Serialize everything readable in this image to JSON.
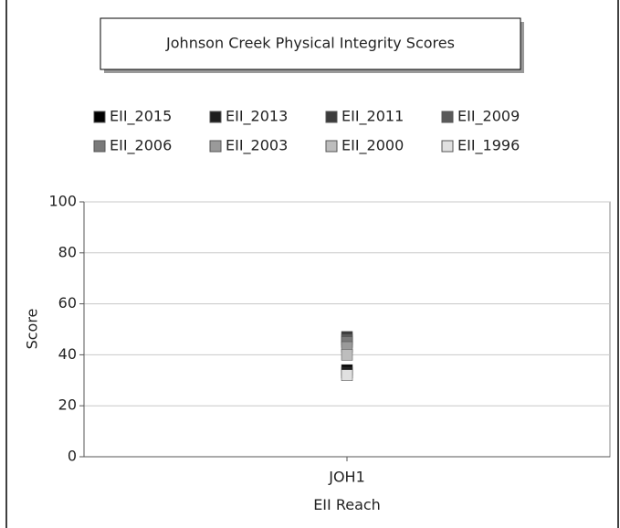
{
  "chart_data": {
    "type": "scatter",
    "title": "Johnson Creek Physical Integrity Scores",
    "xlabel": "EII Reach",
    "ylabel": "Score",
    "categories": [
      "JOH1"
    ],
    "series": [
      {
        "name": "EII_2015",
        "color": "#000000",
        "values": [
          34
        ]
      },
      {
        "name": "EII_2013",
        "color": "#1e1e1e",
        "values": [
          33
        ]
      },
      {
        "name": "EII_2011",
        "color": "#3c3c3c",
        "values": [
          47
        ]
      },
      {
        "name": "EII_2009",
        "color": "#5a5a5a",
        "values": [
          46
        ]
      },
      {
        "name": "EII_2006",
        "color": "#7a7a7a",
        "values": [
          45
        ]
      },
      {
        "name": "EII_2003",
        "color": "#9a9a9a",
        "values": [
          43
        ]
      },
      {
        "name": "EII_2000",
        "color": "#bdbdbd",
        "values": [
          40
        ]
      },
      {
        "name": "EII_1996",
        "color": "#e0e0e0",
        "values": [
          32
        ]
      }
    ],
    "ylim": [
      0,
      100
    ],
    "yticks": [
      0,
      20,
      40,
      60,
      80,
      100
    ],
    "grid": true
  }
}
